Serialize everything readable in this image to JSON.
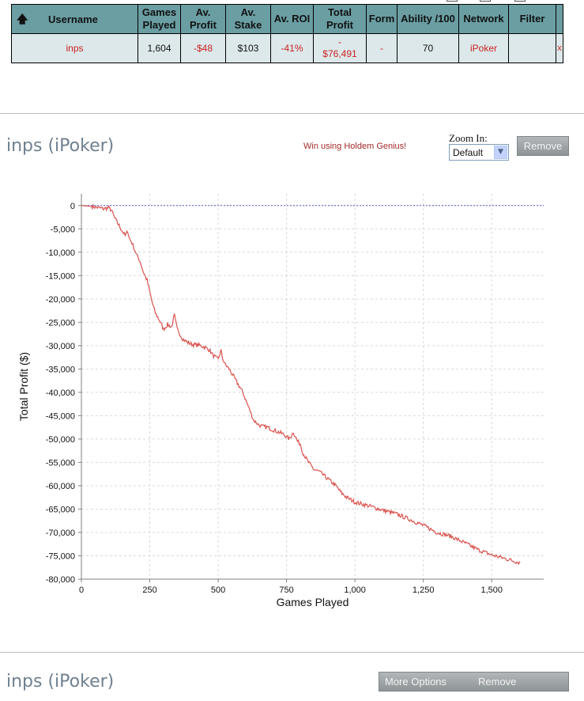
{
  "table": {
    "headers": {
      "username": "Username",
      "games_played": [
        "Games",
        "Played"
      ],
      "av_profit": [
        "Av.",
        "Profit"
      ],
      "av_stake": [
        "Av.",
        "Stake"
      ],
      "av_roi": "Av. ROI",
      "total_profit": [
        "Total",
        "Profit"
      ],
      "form": "Form",
      "ability": "Ability /100",
      "network": "Network",
      "filter": "Filter"
    },
    "row": {
      "username": "inps",
      "games_played": "1,604",
      "av_profit": "-$48",
      "av_stake": "$103",
      "av_roi": "-41%",
      "total_profit": [
        "-",
        "$76,491"
      ],
      "form": "-",
      "ability": "70",
      "network": "iPoker",
      "filter": "",
      "remove": "x"
    }
  },
  "panel1": {
    "title": "inps (iPoker)",
    "promo": "Win using Holdem Genius!",
    "zoom_label": "Zoom In:",
    "zoom_value": "Default",
    "remove_label": "Remove"
  },
  "panel2": {
    "title": "inps (iPoker)",
    "more_options_label": "More Options",
    "remove_label": "Remove"
  },
  "colors": {
    "header_bg": "#6a9ea3",
    "row_bg": "#dce8ea",
    "negative": "#cc2222",
    "line": "#d9534f",
    "zero_line": "#5a5acd",
    "title": "#708090"
  },
  "chart_data": {
    "type": "line",
    "xlabel": "Games Played",
    "ylabel": "Total Profit ($)",
    "xlim": [
      0,
      1690
    ],
    "ylim": [
      -80000,
      2500
    ],
    "x_ticks": [
      0,
      250,
      500,
      750,
      1000,
      1250,
      1500
    ],
    "x_tick_labels": [
      "0",
      "250",
      "500",
      "750",
      "1,000",
      "1,250",
      "1,500"
    ],
    "y_ticks": [
      0,
      -5000,
      -10000,
      -15000,
      -20000,
      -25000,
      -30000,
      -35000,
      -40000,
      -45000,
      -50000,
      -55000,
      -60000,
      -65000,
      -70000,
      -75000,
      -80000
    ],
    "y_tick_labels": [
      "0",
      "-5,000",
      "-10,000",
      "-15,000",
      "-20,000",
      "-25,000",
      "-30,000",
      "-35,000",
      "-40,000",
      "-45,000",
      "-50,000",
      "-55,000",
      "-60,000",
      "-65,000",
      "-70,000",
      "-75,000",
      "-80,000"
    ],
    "grid": true,
    "reference_line": 0,
    "series": [
      {
        "x": [
          0,
          40,
          80,
          100,
          110,
          120,
          135,
          150,
          160,
          170,
          175,
          185,
          195,
          205,
          215,
          225,
          240,
          250,
          260,
          270,
          285,
          300,
          315,
          330,
          340,
          350,
          360,
          370,
          380,
          395,
          410,
          430,
          450,
          470,
          480,
          490,
          500,
          510,
          515,
          525,
          540,
          555,
          570,
          590,
          610,
          620,
          630,
          640,
          650,
          660,
          680,
          700,
          720,
          740,
          760,
          775,
          790,
          800,
          810,
          830,
          850,
          870,
          890,
          910,
          930,
          950,
          970,
          1000,
          1050,
          1100,
          1150,
          1200,
          1250,
          1300,
          1350,
          1400,
          1450,
          1500,
          1550,
          1604
        ],
        "y": [
          0,
          -200,
          -700,
          -500,
          -1000,
          -2500,
          -4000,
          -5500,
          -6500,
          -5500,
          -7000,
          -8000,
          -9500,
          -11000,
          -12000,
          -14000,
          -16000,
          -18500,
          -21000,
          -23000,
          -24500,
          -26500,
          -25500,
          -26000,
          -23500,
          -26500,
          -27500,
          -28500,
          -29000,
          -29500,
          -29800,
          -29900,
          -30300,
          -31000,
          -32000,
          -32500,
          -33000,
          -31000,
          -32500,
          -34000,
          -35000,
          -36500,
          -38000,
          -40000,
          -43000,
          -44500,
          -46000,
          -46500,
          -47000,
          -47300,
          -47500,
          -48000,
          -48500,
          -49000,
          -50000,
          -48500,
          -50500,
          -51000,
          -53000,
          -55000,
          -56500,
          -57000,
          -58000,
          -59000,
          -60000,
          -61500,
          -62500,
          -63500,
          -64300,
          -65200,
          -66000,
          -67200,
          -68500,
          -70000,
          -70800,
          -72200,
          -73700,
          -74800,
          -75600,
          -76491
        ]
      }
    ]
  }
}
